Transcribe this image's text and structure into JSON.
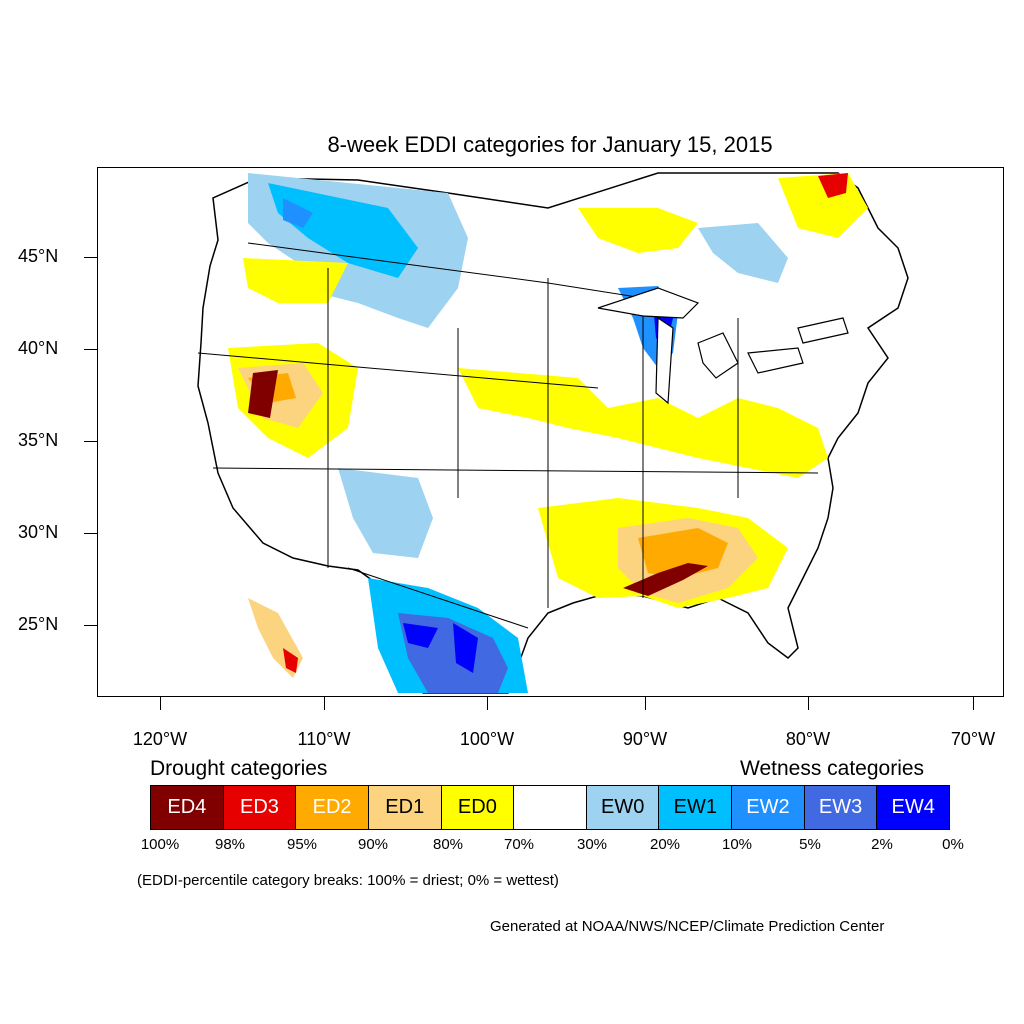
{
  "title": "8-week EDDI categories for January 15, 2015",
  "latitude_labels": [
    "45°N",
    "40°N",
    "35°N",
    "30°N",
    "25°N"
  ],
  "longitude_labels": [
    "120°W",
    "110°W",
    "100°W",
    "90°W",
    "80°W",
    "70°W"
  ],
  "legend": {
    "drought_heading": "Drought categories",
    "wetness_heading": "Wetness categories",
    "categories": [
      {
        "label": "ED4",
        "color": "#800000",
        "text_color": "#ffffff"
      },
      {
        "label": "ED3",
        "color": "#e60000",
        "text_color": "#ffffff"
      },
      {
        "label": "ED2",
        "color": "#ffaa00",
        "text_color": "#ffffff"
      },
      {
        "label": "ED1",
        "color": "#fcd37f",
        "text_color": "#000000"
      },
      {
        "label": "ED0",
        "color": "#ffff00",
        "text_color": "#000000"
      },
      {
        "label": "",
        "color": "#ffffff",
        "text_color": "#000000"
      },
      {
        "label": "EW0",
        "color": "#9dd2f0",
        "text_color": "#000000"
      },
      {
        "label": "EW1",
        "color": "#00bfff",
        "text_color": "#000000"
      },
      {
        "label": "EW2",
        "color": "#1e90ff",
        "text_color": "#ffffff"
      },
      {
        "label": "EW3",
        "color": "#4169e1",
        "text_color": "#ffffff"
      },
      {
        "label": "EW4",
        "color": "#0000ff",
        "text_color": "#ffffff"
      }
    ],
    "breaks": [
      "100%",
      "98%",
      "95%",
      "90%",
      "80%",
      "70%",
      "30%",
      "20%",
      "10%",
      "5%",
      "2%",
      "0%"
    ]
  },
  "note": "(EDDI-percentile category breaks: 100% = driest; 0% = wettest)",
  "credit": "Generated at NOAA/NWS/NCEP/Climate Prediction Center"
}
